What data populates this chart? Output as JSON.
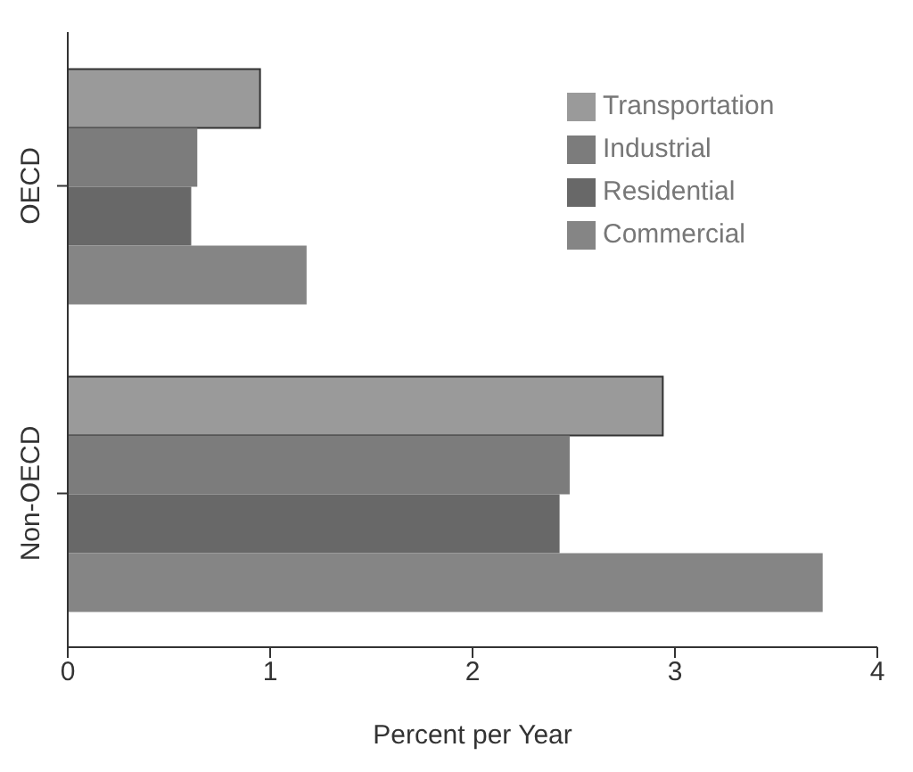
{
  "chart_data": {
    "type": "bar",
    "orientation": "horizontal",
    "categories": [
      "OECD",
      "Non-OECD"
    ],
    "series": [
      {
        "name": "Transportation",
        "color": "#9a9a9a",
        "values": [
          0.95,
          2.94
        ]
      },
      {
        "name": "Industrial",
        "color": "#7c7c7c",
        "values": [
          0.64,
          2.48
        ]
      },
      {
        "name": "Residential",
        "color": "#686868",
        "values": [
          0.61,
          2.43
        ]
      },
      {
        "name": "Commercial",
        "color": "#858585",
        "values": [
          1.18,
          3.73
        ]
      }
    ],
    "xlabel": "Percent per Year",
    "xlim": [
      0,
      4
    ],
    "xticks": [
      0,
      1,
      2,
      3,
      4
    ],
    "grid": false,
    "legend": "top right"
  }
}
